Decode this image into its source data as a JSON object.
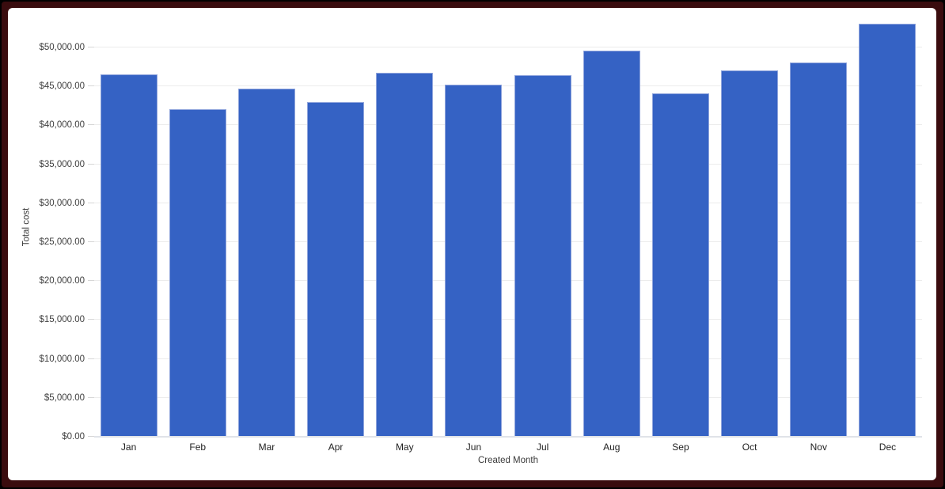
{
  "frame": {
    "outer_color": "#000000",
    "border_color": "#3a0c0e",
    "panel_color": "#ffffff"
  },
  "chart_data": {
    "type": "bar",
    "title": "",
    "xlabel": "Created Month",
    "ylabel": "Total cost",
    "categories": [
      "Jan",
      "Feb",
      "Mar",
      "Apr",
      "May",
      "Jun",
      "Jul",
      "Aug",
      "Sep",
      "Oct",
      "Nov",
      "Dec"
    ],
    "values": [
      46600,
      42050,
      44700,
      43000,
      46800,
      45250,
      46400,
      49600,
      44100,
      47100,
      48100,
      53050
    ],
    "series_name": "Total cost",
    "y_ticks": [
      "$0.00",
      "$5,000.00",
      "$10,000.00",
      "$15,000.00",
      "$20,000.00",
      "$25,000.00",
      "$30,000.00",
      "$35,000.00",
      "$40,000.00",
      "$45,000.00",
      "$50,000.00"
    ],
    "y_tick_values": [
      0,
      5000,
      10000,
      15000,
      20000,
      25000,
      30000,
      35000,
      40000,
      45000,
      50000
    ],
    "ylim": [
      0,
      53900
    ],
    "grid": true,
    "legend": "none",
    "bar_color": "#3562c4",
    "bar_border_color": "#8fa4dc"
  }
}
